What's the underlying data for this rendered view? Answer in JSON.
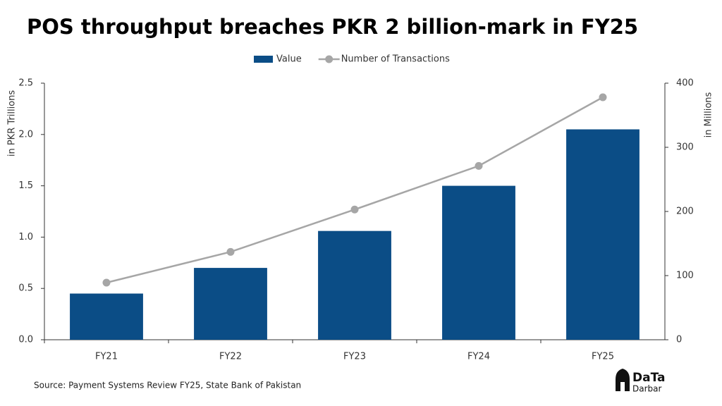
{
  "chart_data": {
    "type": "bar",
    "title": "POS throughput breaches PKR 2 billion-mark in FY25",
    "categories": [
      "FY21",
      "FY22",
      "FY23",
      "FY24",
      "FY25"
    ],
    "series": [
      {
        "name": "Value",
        "type": "bar",
        "color": "#0b4d86",
        "values": [
          0.45,
          0.7,
          1.06,
          1.5,
          2.05
        ]
      },
      {
        "name": "Number of Transactions",
        "type": "line",
        "axis": "y2",
        "color": "#a6a6a6",
        "values": [
          89,
          137,
          203,
          271,
          378
        ]
      }
    ],
    "ylabel": "in PKR Trillions",
    "y2label": "in Millions",
    "ylim": [
      0,
      2.5
    ],
    "yticks": [
      {
        "value": 0,
        "label": "0.0"
      },
      0.5,
      {
        "value": 1,
        "label": "1.0"
      },
      1.5,
      {
        "value": 2,
        "label": "2.0"
      },
      2.5
    ],
    "y2lim": [
      0,
      400
    ],
    "y2ticks": [
      0,
      100,
      200,
      300,
      400
    ],
    "legend": "top",
    "source": "Source: Payment Systems Review FY25, State Bank of Pakistan"
  },
  "logo": {
    "top": "DaTa",
    "bottom": "Darbar"
  }
}
